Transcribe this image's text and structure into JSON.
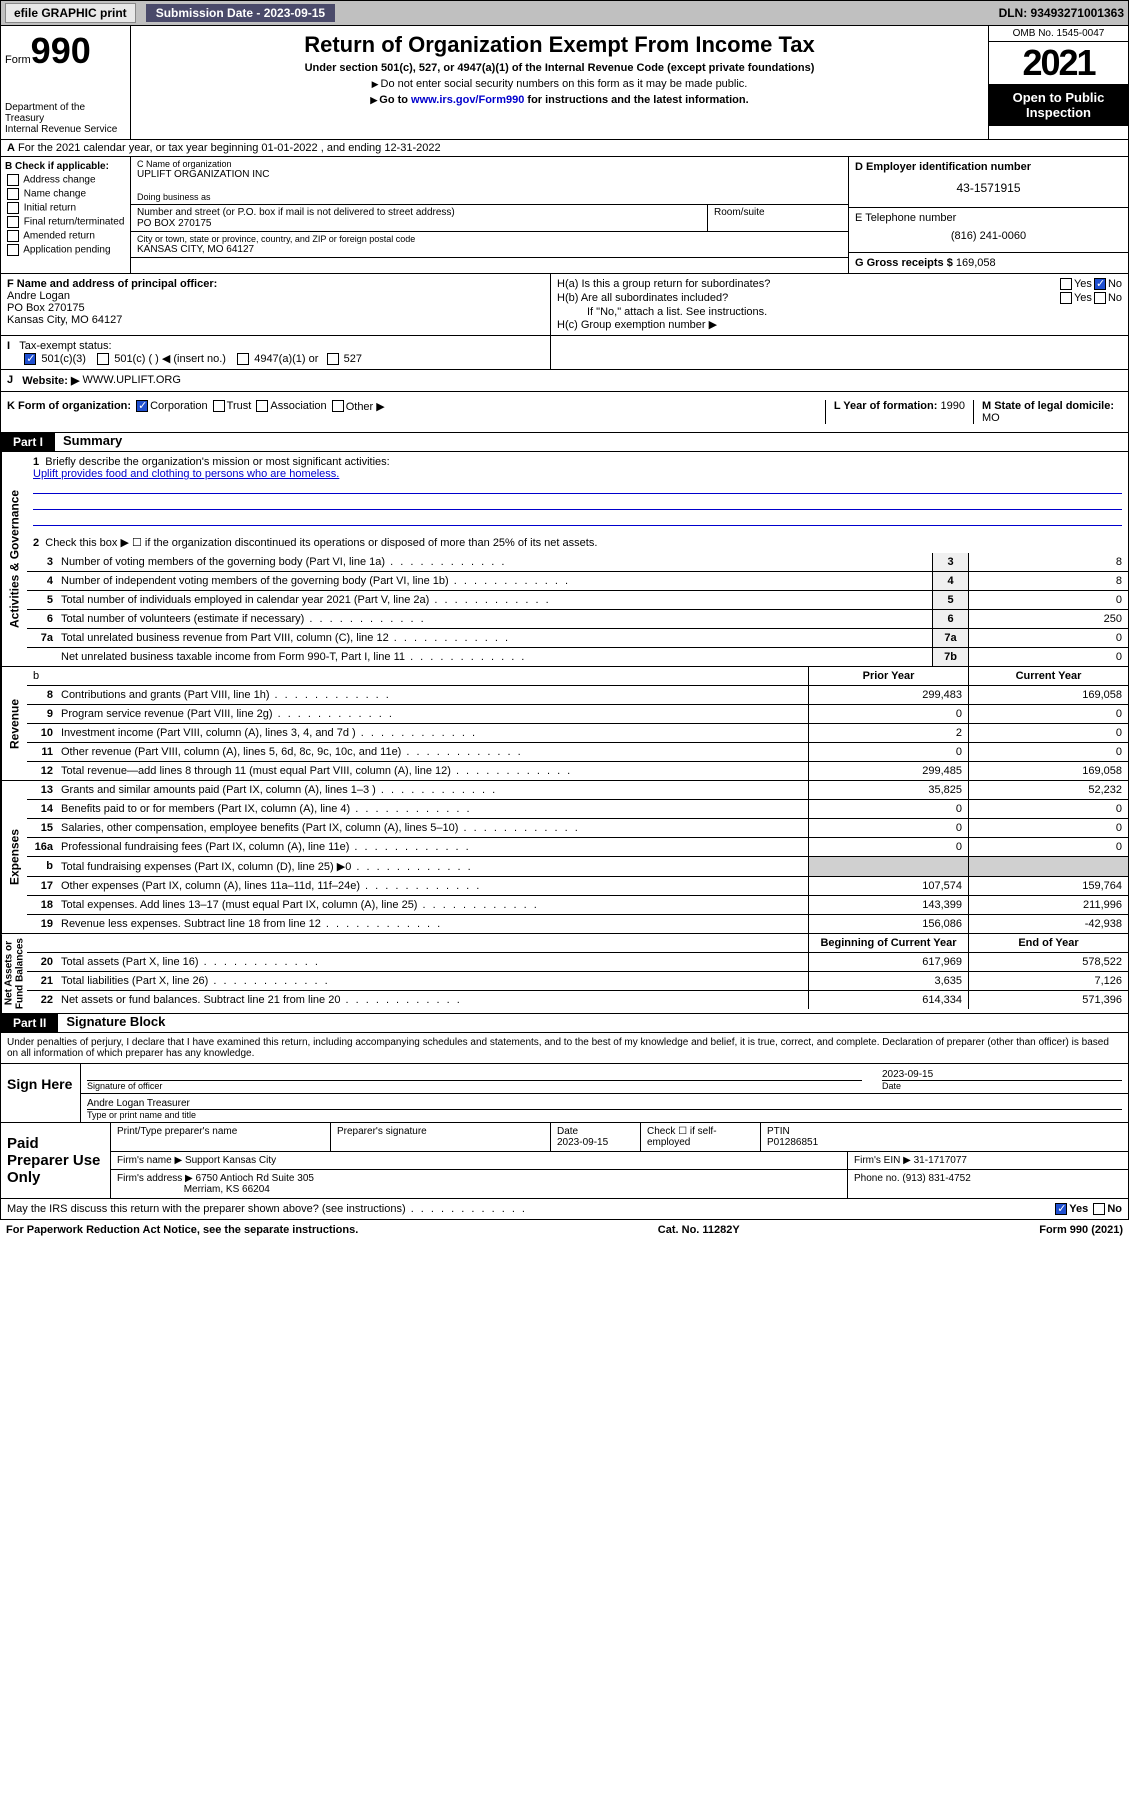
{
  "topbar": {
    "efile": "efile GRAPHIC print",
    "sub_label": "Submission Date - 2023-09-15",
    "dln": "DLN: 93493271001363"
  },
  "header": {
    "form_prefix": "Form",
    "form_num": "990",
    "dept": "Department of the Treasury",
    "irs": "Internal Revenue Service",
    "title": "Return of Organization Exempt From Income Tax",
    "sub1": "Under section 501(c), 527, or 4947(a)(1) of the Internal Revenue Code (except private foundations)",
    "sub2": "Do not enter social security numbers on this form as it may be made public.",
    "sub3_pre": "Go to ",
    "sub3_link": "www.irs.gov/Form990",
    "sub3_post": " for instructions and the latest information.",
    "omb": "OMB No. 1545-0047",
    "year": "2021",
    "open": "Open to Public Inspection"
  },
  "row_a": "For the 2021 calendar year, or tax year beginning 01-01-2022   , and ending 12-31-2022",
  "col_b": {
    "title": "B Check if applicable:",
    "items": [
      "Address change",
      "Name change",
      "Initial return",
      "Final return/terminated",
      "Amended return",
      "Application pending"
    ]
  },
  "org": {
    "name_lbl": "C Name of organization",
    "name": "UPLIFT ORGANIZATION INC",
    "dba_lbl": "Doing business as",
    "dba": "",
    "street_lbl": "Number and street (or P.O. box if mail is not delivered to street address)",
    "street": "PO BOX 270175",
    "suite_lbl": "Room/suite",
    "city_lbl": "City or town, state or province, country, and ZIP or foreign postal code",
    "city": "KANSAS CITY, MO  64127"
  },
  "right": {
    "d_lbl": "D Employer identification number",
    "ein": "43-1571915",
    "e_lbl": "E Telephone number",
    "phone": "(816) 241-0060",
    "g_lbl": "G Gross receipts $",
    "gross": "169,058"
  },
  "f": {
    "lbl": "F Name and address of principal officer:",
    "name": "Andre Logan",
    "street": "PO Box 270175",
    "city": "Kansas City, MO  64127"
  },
  "h": {
    "a": "H(a)  Is this a group return for subordinates?",
    "b": "H(b)  Are all subordinates included?",
    "note": "If \"No,\" attach a list. See instructions.",
    "c": "H(c)  Group exemption number ▶"
  },
  "i": {
    "lbl": "Tax-exempt status:",
    "o1": "501(c)(3)",
    "o2": "501(c) (  ) ◀ (insert no.)",
    "o3": "4947(a)(1) or",
    "o4": "527"
  },
  "j": {
    "lbl": "Website: ▶",
    "val": "WWW.UPLIFT.ORG"
  },
  "k": {
    "lbl": "K Form of organization:",
    "o1": "Corporation",
    "o2": "Trust",
    "o3": "Association",
    "o4": "Other ▶",
    "l_lbl": "L Year of formation:",
    "l_val": "1990",
    "m_lbl": "M State of legal domicile:",
    "m_val": "MO"
  },
  "part1": {
    "hdr": "Part I",
    "title": "Summary",
    "q1": "Briefly describe the organization's mission or most significant activities:",
    "mission": "Uplift provides food and clothing to persons who are homeless.",
    "q2": "Check this box ▶ ☐ if the organization discontinued its operations or disposed of more than 25% of its net assets.",
    "lines_gov": [
      {
        "n": "3",
        "d": "Number of voting members of the governing body (Part VI, line 1a)",
        "b": "3",
        "v": "8"
      },
      {
        "n": "4",
        "d": "Number of independent voting members of the governing body (Part VI, line 1b)",
        "b": "4",
        "v": "8"
      },
      {
        "n": "5",
        "d": "Total number of individuals employed in calendar year 2021 (Part V, line 2a)",
        "b": "5",
        "v": "0"
      },
      {
        "n": "6",
        "d": "Total number of volunteers (estimate if necessary)",
        "b": "6",
        "v": "250"
      },
      {
        "n": "7a",
        "d": "Total unrelated business revenue from Part VIII, column (C), line 12",
        "b": "7a",
        "v": "0"
      },
      {
        "n": "",
        "d": "Net unrelated business taxable income from Form 990-T, Part I, line 11",
        "b": "7b",
        "v": "0"
      }
    ],
    "hdr_prior": "Prior Year",
    "hdr_curr": "Current Year",
    "lines_rev": [
      {
        "n": "8",
        "d": "Contributions and grants (Part VIII, line 1h)",
        "p": "299,483",
        "c": "169,058"
      },
      {
        "n": "9",
        "d": "Program service revenue (Part VIII, line 2g)",
        "p": "0",
        "c": "0"
      },
      {
        "n": "10",
        "d": "Investment income (Part VIII, column (A), lines 3, 4, and 7d )",
        "p": "2",
        "c": "0"
      },
      {
        "n": "11",
        "d": "Other revenue (Part VIII, column (A), lines 5, 6d, 8c, 9c, 10c, and 11e)",
        "p": "0",
        "c": "0"
      },
      {
        "n": "12",
        "d": "Total revenue—add lines 8 through 11 (must equal Part VIII, column (A), line 12)",
        "p": "299,485",
        "c": "169,058"
      }
    ],
    "lines_exp": [
      {
        "n": "13",
        "d": "Grants and similar amounts paid (Part IX, column (A), lines 1–3 )",
        "p": "35,825",
        "c": "52,232"
      },
      {
        "n": "14",
        "d": "Benefits paid to or for members (Part IX, column (A), line 4)",
        "p": "0",
        "c": "0"
      },
      {
        "n": "15",
        "d": "Salaries, other compensation, employee benefits (Part IX, column (A), lines 5–10)",
        "p": "0",
        "c": "0"
      },
      {
        "n": "16a",
        "d": "Professional fundraising fees (Part IX, column (A), line 11e)",
        "p": "0",
        "c": "0"
      },
      {
        "n": "b",
        "d": "Total fundraising expenses (Part IX, column (D), line 25) ▶0",
        "p": "",
        "c": "",
        "shade": true
      },
      {
        "n": "17",
        "d": "Other expenses (Part IX, column (A), lines 11a–11d, 11f–24e)",
        "p": "107,574",
        "c": "159,764"
      },
      {
        "n": "18",
        "d": "Total expenses. Add lines 13–17 (must equal Part IX, column (A), line 25)",
        "p": "143,399",
        "c": "211,996"
      },
      {
        "n": "19",
        "d": "Revenue less expenses. Subtract line 18 from line 12",
        "p": "156,086",
        "c": "-42,938"
      }
    ],
    "hdr_beg": "Beginning of Current Year",
    "hdr_end": "End of Year",
    "lines_net": [
      {
        "n": "20",
        "d": "Total assets (Part X, line 16)",
        "p": "617,969",
        "c": "578,522"
      },
      {
        "n": "21",
        "d": "Total liabilities (Part X, line 26)",
        "p": "3,635",
        "c": "7,126"
      },
      {
        "n": "22",
        "d": "Net assets or fund balances. Subtract line 21 from line 20",
        "p": "614,334",
        "c": "571,396"
      }
    ]
  },
  "part2": {
    "hdr": "Part II",
    "title": "Signature Block",
    "decl": "Under penalties of perjury, I declare that I have examined this return, including accompanying schedules and statements, and to the best of my knowledge and belief, it is true, correct, and complete. Declaration of preparer (other than officer) is based on all information of which preparer has any knowledge.",
    "sign_here": "Sign Here",
    "sig_officer": "Signature of officer",
    "sig_date_lbl": "Date",
    "sig_date": "2023-09-15",
    "officer_name": "Andre Logan  Treasurer",
    "type_name": "Type or print name and title",
    "paid": "Paid Preparer Use Only",
    "prep_name_lbl": "Print/Type preparer's name",
    "prep_sig_lbl": "Preparer's signature",
    "prep_date_lbl": "Date",
    "prep_date": "2023-09-15",
    "prep_check": "Check ☐ if self-employed",
    "ptin_lbl": "PTIN",
    "ptin": "P01286851",
    "firm_name_lbl": "Firm's name      ▶",
    "firm_name": "Support Kansas City",
    "firm_ein_lbl": "Firm's EIN ▶",
    "firm_ein": "31-1717077",
    "firm_addr_lbl": "Firm's address ▶",
    "firm_addr": "6750 Antioch Rd Suite 305",
    "firm_city": "Merriam, KS  66204",
    "firm_phone_lbl": "Phone no.",
    "firm_phone": "(913) 831-4752",
    "may_irs": "May the IRS discuss this return with the preparer shown above? (see instructions)",
    "yes": "Yes",
    "no": "No"
  },
  "footer": {
    "pra": "For Paperwork Reduction Act Notice, see the separate instructions.",
    "cat": "Cat. No. 11282Y",
    "form": "Form 990 (2021)"
  }
}
